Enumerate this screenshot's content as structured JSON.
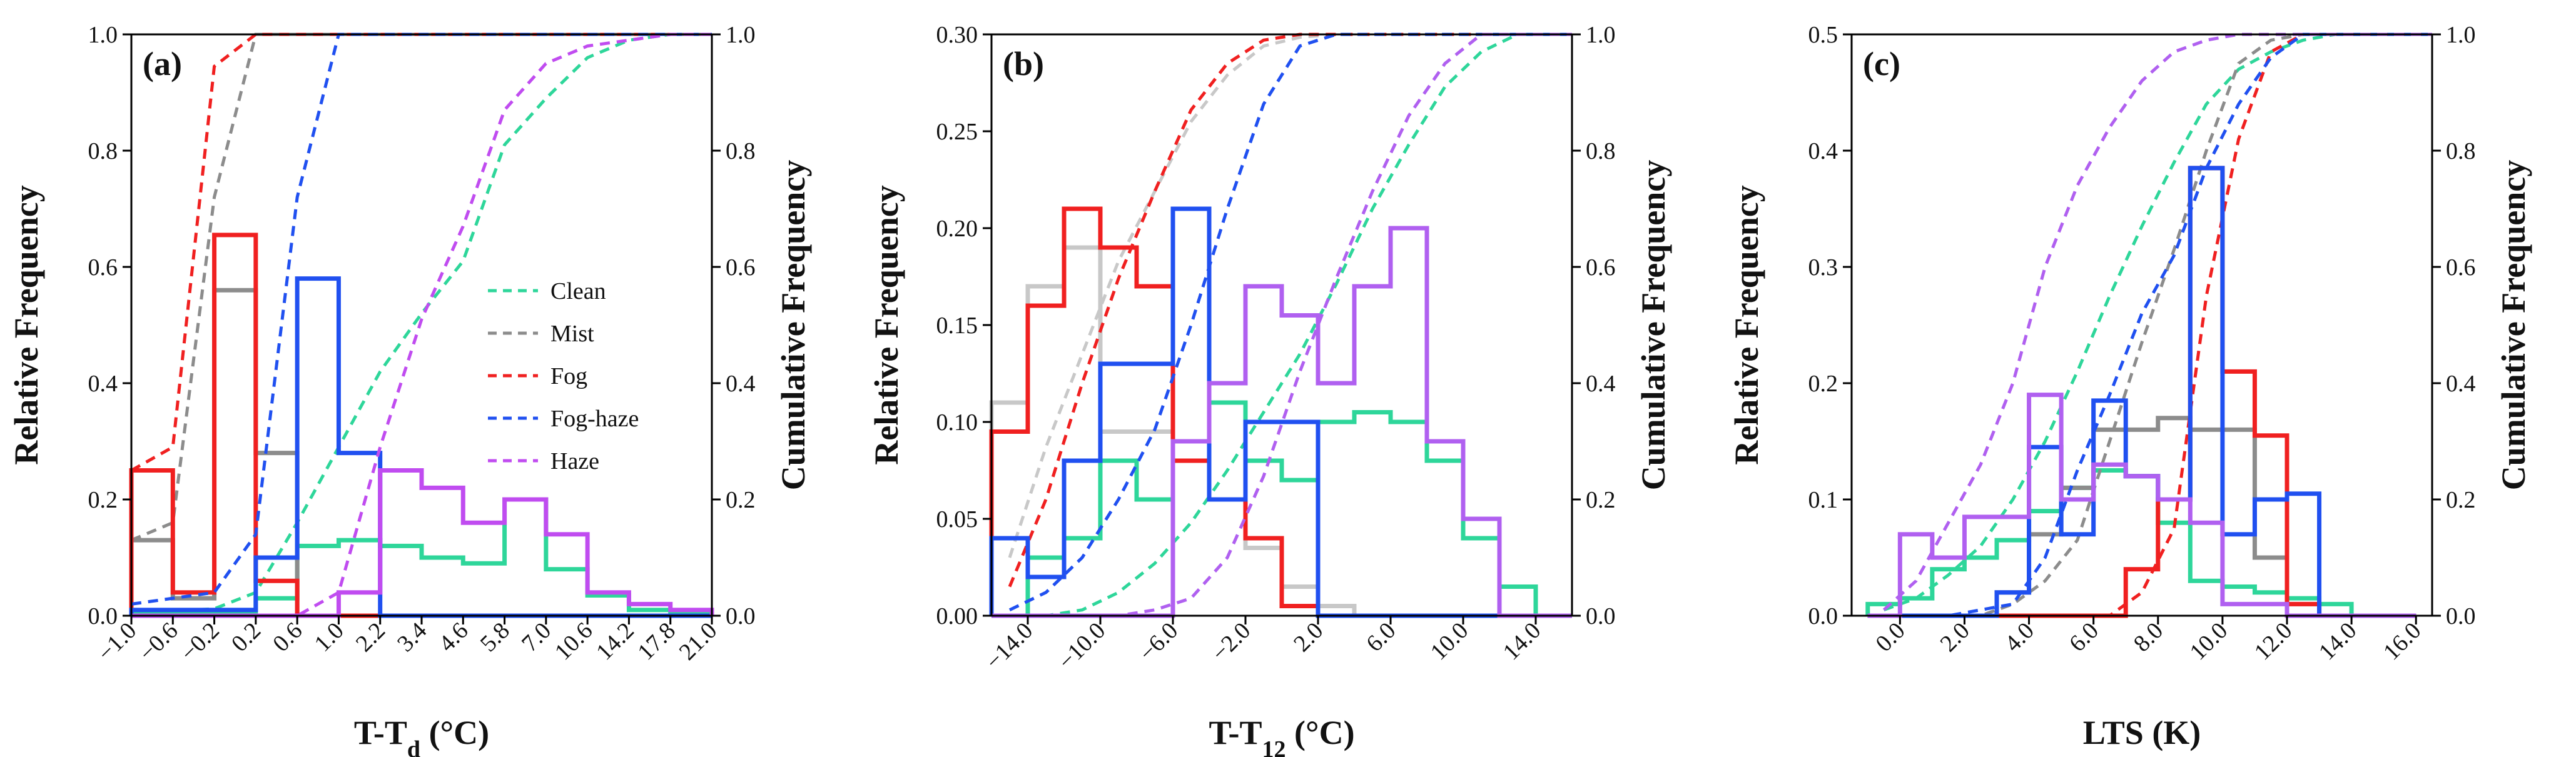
{
  "figure": {
    "legend": {
      "entries": [
        {
          "label": "Clean",
          "color": "#2ed69a"
        },
        {
          "label": "Mist",
          "color": "#8c8c8c"
        },
        {
          "label": "Fog",
          "color": "#f02020"
        },
        {
          "label": "Fog-haze",
          "color": "#2050f0"
        },
        {
          "label": "Haze",
          "color": "#c04cf0"
        }
      ]
    }
  },
  "chart_data": [
    {
      "type": "histogram_with_cdf",
      "panel_label": "(a)",
      "xlabel_main": "T-T",
      "xlabel_sub": "d",
      "xlabel_suffix": " (°C)",
      "ylabel_left": "Relative Frequency",
      "ylabel_right": "Cumulative Frequency",
      "ylim_left": [
        0,
        1.0
      ],
      "ylim_right": [
        0,
        1.0
      ],
      "yticks_left": [
        "0.0",
        "0.2",
        "0.4",
        "0.6",
        "0.8",
        "1.0"
      ],
      "yticks_right": [
        "0.0",
        "0.2",
        "0.4",
        "0.6",
        "0.8",
        "1.0"
      ],
      "xticks": [
        "-1.0",
        "-0.6",
        "-0.2",
        "0.2",
        "0.6",
        "1.0",
        "2.2",
        "3.4",
        "4.6",
        "5.8",
        "7.0",
        "10.6",
        "14.2",
        "17.8",
        "21.0"
      ],
      "x_mode": "categorical",
      "series": [
        {
          "name": "Clean",
          "color": "#2ed69a",
          "hist": [
            0.005,
            0.003,
            0.004,
            0.03,
            0.12,
            0.13,
            0.12,
            0.1,
            0.09,
            0.2,
            0.08,
            0.035,
            0.01,
            0.003
          ],
          "cdf": [
            0.005,
            0.008,
            0.012,
            0.04,
            0.16,
            0.29,
            0.42,
            0.52,
            0.61,
            0.81,
            0.89,
            0.96,
            0.99,
            1.0
          ]
        },
        {
          "name": "Mist",
          "color": "#8c8c8c",
          "hist": [
            0.13,
            0.03,
            0.56,
            0.28,
            0.0,
            0.0,
            0.0,
            0.0,
            0.0,
            0.0,
            0.0,
            0.0,
            0.0,
            0.0
          ],
          "cdf": [
            0.13,
            0.16,
            0.72,
            1.0,
            1.0,
            1.0,
            1.0,
            1.0,
            1.0,
            1.0,
            1.0,
            1.0,
            1.0,
            1.0
          ]
        },
        {
          "name": "Fog",
          "color": "#f02020",
          "hist": [
            0.25,
            0.04,
            0.655,
            0.06,
            0.0,
            0.0,
            0.0,
            0.0,
            0.0,
            0.0,
            0.0,
            0.0,
            0.0,
            0.0
          ],
          "cdf": [
            0.25,
            0.29,
            0.945,
            1.0,
            1.0,
            1.0,
            1.0,
            1.0,
            1.0,
            1.0,
            1.0,
            1.0,
            1.0,
            1.0
          ]
        },
        {
          "name": "Fog-haze",
          "color": "#2050f0",
          "hist": [
            0.01,
            0.01,
            0.01,
            0.1,
            0.58,
            0.28,
            0.0,
            0.0,
            0.0,
            0.0,
            0.0,
            0.0,
            0.0,
            0.0
          ],
          "cdf": [
            0.02,
            0.03,
            0.04,
            0.14,
            0.72,
            1.0,
            1.0,
            1.0,
            1.0,
            1.0,
            1.0,
            1.0,
            1.0,
            1.0
          ]
        },
        {
          "name": "Haze",
          "color": "#c04cf0",
          "hist": [
            0.0,
            0.0,
            0.0,
            0.0,
            0.0,
            0.04,
            0.25,
            0.22,
            0.16,
            0.2,
            0.14,
            0.04,
            0.02,
            0.01
          ],
          "cdf": [
            0.0,
            0.0,
            0.0,
            0.0,
            0.0,
            0.04,
            0.29,
            0.51,
            0.67,
            0.87,
            0.95,
            0.98,
            0.99,
            1.0
          ]
        }
      ]
    },
    {
      "type": "histogram_with_cdf",
      "panel_label": "(b)",
      "xlabel_main": "T-T",
      "xlabel_sub": "12",
      "xlabel_suffix": " (°C)",
      "ylabel_left": "Relative Frequency",
      "ylabel_right": "Cumulative Frequency",
      "ylim_left": [
        0,
        0.3
      ],
      "ylim_right": [
        0,
        1.0
      ],
      "yticks_left": [
        "0.00",
        "0.05",
        "0.10",
        "0.15",
        "0.20",
        "0.25",
        "0.30"
      ],
      "yticks_right": [
        "0.0",
        "0.2",
        "0.4",
        "0.6",
        "0.8",
        "1.0"
      ],
      "xticks": [
        "-14.0",
        "-10.0",
        "-6.0",
        "-2.0",
        "2.0",
        "6.0",
        "10.0",
        "14.0"
      ],
      "x_mode": "numeric",
      "xlim": [
        -16,
        16
      ],
      "bin_edges": [
        -16,
        -14,
        -12,
        -10,
        -8,
        -6,
        -4,
        -2,
        0,
        2,
        4,
        6,
        8,
        10,
        12,
        14,
        16
      ],
      "series": [
        {
          "name": "Clean",
          "color": "#2ed69a",
          "hist": [
            0.0,
            0.03,
            0.04,
            0.08,
            0.06,
            0.09,
            0.11,
            0.08,
            0.07,
            0.1,
            0.105,
            0.1,
            0.08,
            0.04,
            0.015,
            0.0
          ],
          "cdf": [
            0.0,
            0.0,
            0.01,
            0.04,
            0.09,
            0.16,
            0.25,
            0.35,
            0.45,
            0.57,
            0.7,
            0.81,
            0.91,
            0.97,
            1.0,
            1.0
          ]
        },
        {
          "name": "Mist",
          "color": "#c8c8c8",
          "hist": [
            0.11,
            0.17,
            0.19,
            0.095,
            0.095,
            0.09,
            0.06,
            0.035,
            0.015,
            0.005,
            0.0,
            0.0,
            0.0,
            0.0,
            0.0,
            0.0
          ],
          "cdf": [
            0.1,
            0.29,
            0.45,
            0.61,
            0.73,
            0.85,
            0.93,
            0.98,
            0.995,
            1.0,
            1.0,
            1.0,
            1.0,
            1.0,
            1.0,
            1.0
          ]
        },
        {
          "name": "Fog",
          "color": "#f02020",
          "hist": [
            0.095,
            0.16,
            0.21,
            0.19,
            0.17,
            0.08,
            0.06,
            0.04,
            0.005,
            0.0,
            0.0,
            0.0,
            0.0,
            0.0,
            0.0,
            0.0
          ],
          "cdf": [
            0.05,
            0.2,
            0.4,
            0.58,
            0.73,
            0.87,
            0.95,
            0.99,
            1.0,
            1.0,
            1.0,
            1.0,
            1.0,
            1.0,
            1.0,
            1.0
          ]
        },
        {
          "name": "Fog-haze",
          "color": "#2050f0",
          "hist": [
            0.04,
            0.02,
            0.08,
            0.13,
            0.13,
            0.21,
            0.06,
            0.1,
            0.1,
            0.0,
            0.0,
            0.0,
            0.0,
            0.0,
            0.0,
            0.0
          ],
          "cdf": [
            0.01,
            0.04,
            0.1,
            0.2,
            0.32,
            0.5,
            0.7,
            0.88,
            0.98,
            1.0,
            1.0,
            1.0,
            1.0,
            1.0,
            1.0,
            1.0
          ]
        },
        {
          "name": "Haze",
          "color": "#b060f0",
          "hist": [
            0.0,
            0.0,
            0.0,
            0.0,
            0.0,
            0.09,
            0.12,
            0.17,
            0.155,
            0.12,
            0.17,
            0.2,
            0.09,
            0.05,
            0.0,
            0.0
          ],
          "cdf": [
            0.0,
            0.0,
            0.0,
            0.0,
            0.01,
            0.03,
            0.1,
            0.24,
            0.42,
            0.58,
            0.73,
            0.86,
            0.95,
            1.0,
            1.0,
            1.0
          ]
        }
      ]
    },
    {
      "type": "histogram_with_cdf",
      "panel_label": "(c)",
      "xlabel_main": "LTS (K)",
      "xlabel_sub": "",
      "xlabel_suffix": "",
      "ylabel_left": "Relative Frequency",
      "ylabel_right": "Cumulative Frequency",
      "ylim_left": [
        0,
        0.5
      ],
      "ylim_right": [
        0,
        1.0
      ],
      "yticks_left": [
        "0.0",
        "0.1",
        "0.2",
        "0.3",
        "0.4",
        "0.5"
      ],
      "yticks_right": [
        "0.0",
        "0.2",
        "0.4",
        "0.6",
        "0.8",
        "1.0"
      ],
      "xticks": [
        "0.0",
        "2.0",
        "4.0",
        "6.0",
        "8.0",
        "10.0",
        "12.0",
        "14.0",
        "16.0"
      ],
      "x_mode": "numeric",
      "xlim": [
        -1.5,
        16.5
      ],
      "bin_edges": [
        -1,
        0,
        1,
        2,
        3,
        4,
        5,
        6,
        7,
        8,
        9,
        10,
        11,
        12,
        13,
        14,
        15,
        16
      ],
      "series": [
        {
          "name": "Clean",
          "color": "#2ed69a",
          "hist": [
            0.01,
            0.015,
            0.04,
            0.05,
            0.065,
            0.09,
            0.11,
            0.125,
            0.12,
            0.08,
            0.03,
            0.025,
            0.02,
            0.015,
            0.01,
            0.0,
            0.0
          ],
          "cdf": [
            0.01,
            0.03,
            0.07,
            0.12,
            0.2,
            0.3,
            0.42,
            0.55,
            0.67,
            0.78,
            0.88,
            0.94,
            0.97,
            0.99,
            1.0,
            1.0,
            1.0
          ]
        },
        {
          "name": "Mist",
          "color": "#8c8c8c",
          "hist": [
            0.0,
            0.0,
            0.0,
            0.0,
            0.02,
            0.07,
            0.11,
            0.16,
            0.16,
            0.17,
            0.16,
            0.16,
            0.05,
            0.01,
            0.0,
            0.0,
            0.0
          ],
          "cdf": [
            0.0,
            0.0,
            0.0,
            0.0,
            0.02,
            0.06,
            0.13,
            0.3,
            0.47,
            0.63,
            0.8,
            0.95,
            0.99,
            1.0,
            1.0,
            1.0,
            1.0
          ]
        },
        {
          "name": "Fog",
          "color": "#f02020",
          "hist": [
            0.0,
            0.0,
            0.0,
            0.0,
            0.0,
            0.0,
            0.0,
            0.0,
            0.04,
            0.1,
            0.385,
            0.21,
            0.155,
            0.01,
            0.0,
            0.0,
            0.0
          ],
          "cdf": [
            0.0,
            0.0,
            0.0,
            0.0,
            0.0,
            0.0,
            0.0,
            0.0,
            0.04,
            0.15,
            0.55,
            0.82,
            0.97,
            1.0,
            1.0,
            1.0,
            1.0
          ]
        },
        {
          "name": "Fog-haze",
          "color": "#2050f0",
          "hist": [
            0.0,
            0.0,
            0.0,
            0.0,
            0.02,
            0.145,
            0.07,
            0.185,
            0.12,
            0.1,
            0.385,
            0.07,
            0.1,
            0.105,
            0.0,
            0.0,
            0.0
          ],
          "cdf": [
            0.0,
            0.0,
            0.0,
            0.01,
            0.02,
            0.1,
            0.25,
            0.38,
            0.52,
            0.62,
            0.77,
            0.88,
            0.96,
            1.0,
            1.0,
            1.0,
            1.0
          ]
        },
        {
          "name": "Haze",
          "color": "#b060f0",
          "hist": [
            0.0,
            0.07,
            0.05,
            0.085,
            0.085,
            0.19,
            0.1,
            0.13,
            0.12,
            0.1,
            0.08,
            0.01,
            0.01,
            0.0,
            0.0,
            0.0,
            0.0
          ],
          "cdf": [
            0.01,
            0.06,
            0.16,
            0.26,
            0.4,
            0.6,
            0.74,
            0.84,
            0.92,
            0.97,
            0.99,
            1.0,
            1.0,
            1.0,
            1.0,
            1.0,
            1.0
          ]
        }
      ]
    }
  ]
}
